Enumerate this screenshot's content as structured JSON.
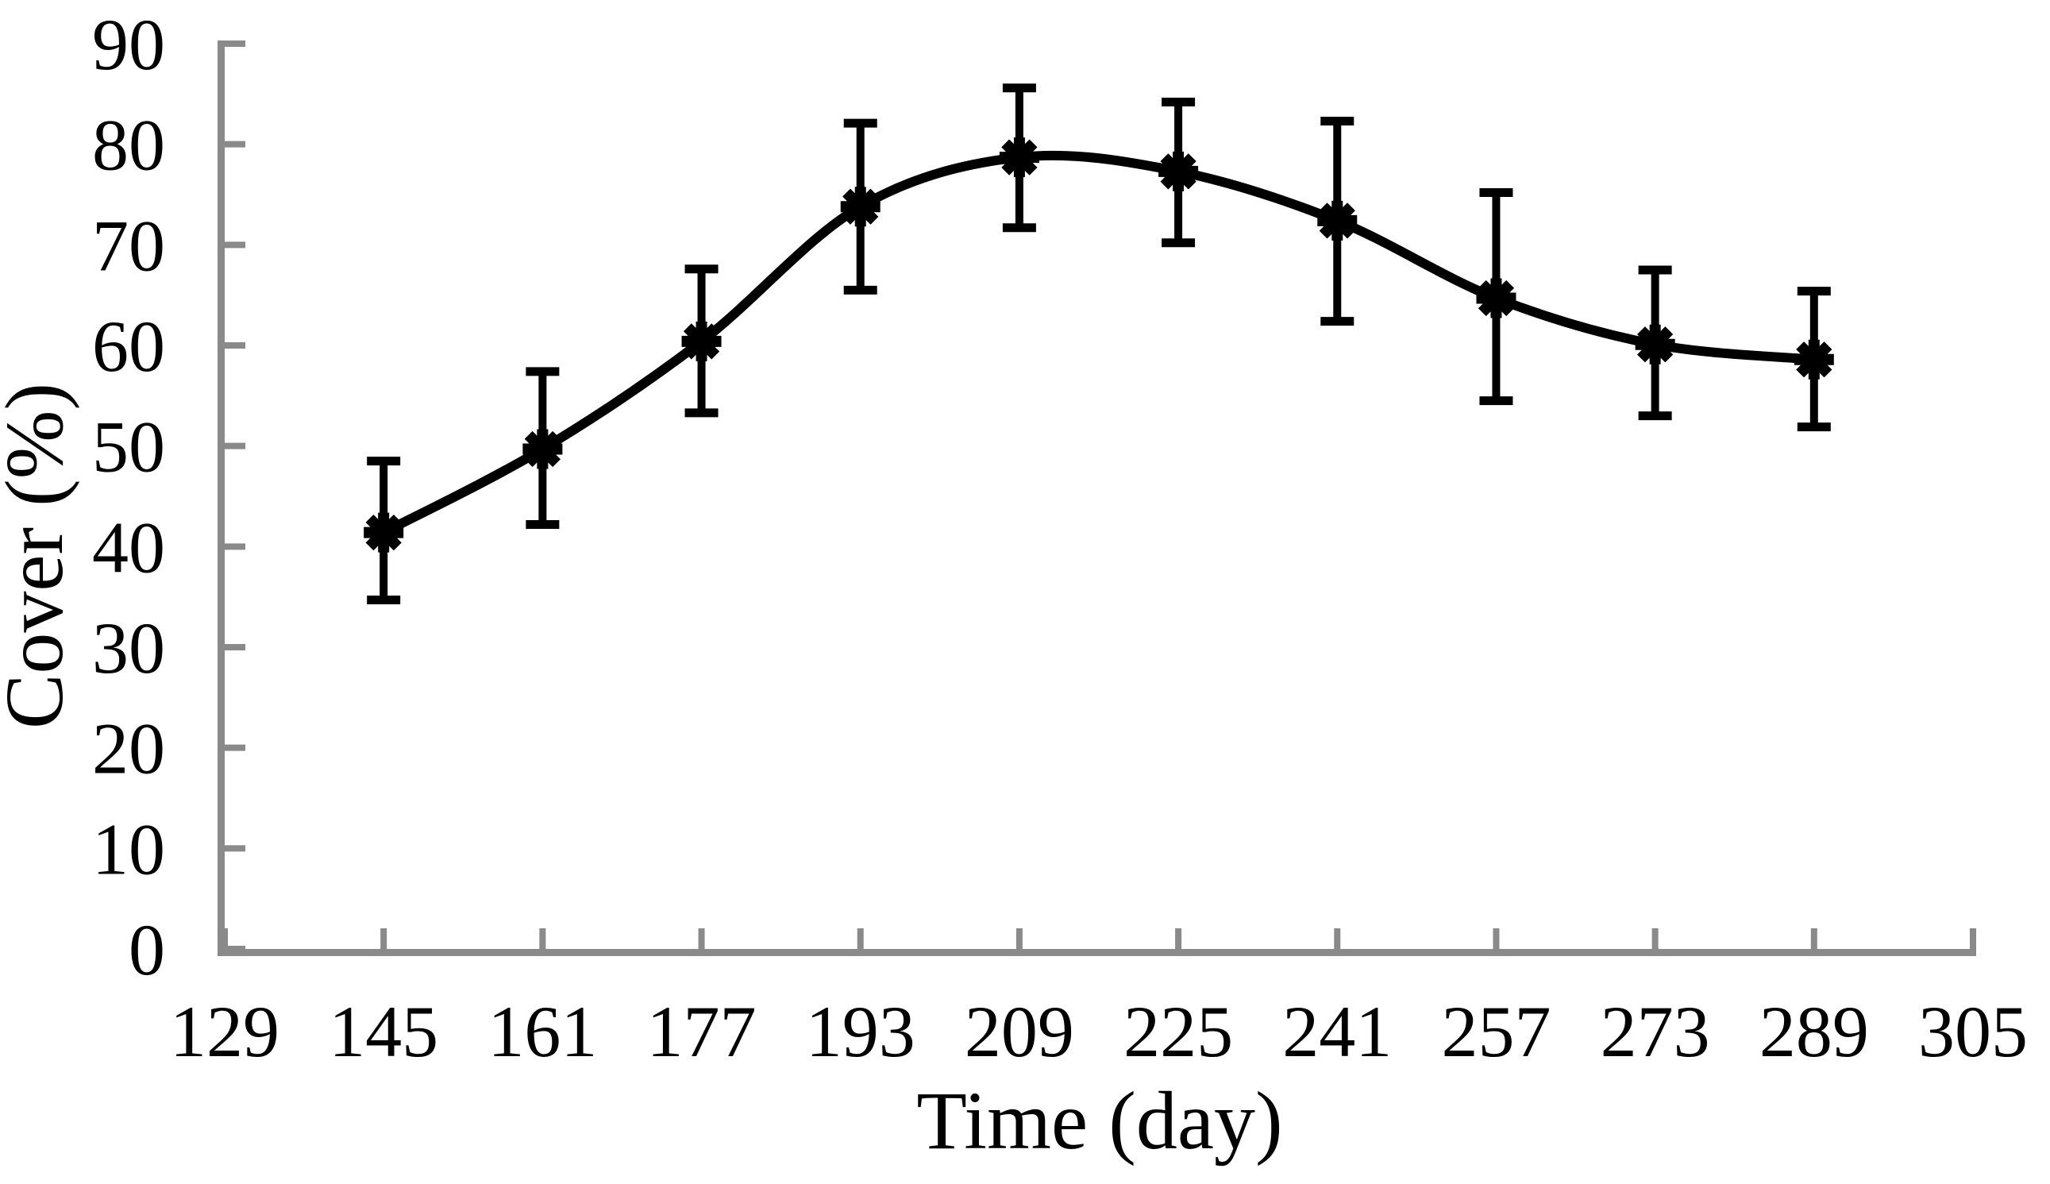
{
  "chart_data": {
    "type": "line",
    "title": "",
    "xlabel": "Time (day)",
    "ylabel": "Cover (%)",
    "xlim": [
      129,
      305
    ],
    "ylim": [
      0,
      90
    ],
    "x_ticks": [
      129,
      145,
      161,
      177,
      193,
      209,
      225,
      241,
      257,
      273,
      289,
      305
    ],
    "y_ticks": [
      0,
      10,
      20,
      30,
      40,
      50,
      60,
      70,
      80,
      90
    ],
    "grid": false,
    "legend": false,
    "axis_color": "#8a8a8a",
    "series": [
      {
        "name": "Cover",
        "color": "#000000",
        "marker": "eight-point-star",
        "smooth": true,
        "error_bars": true,
        "points": [
          {
            "x": 145,
            "y": 41.4,
            "lo": 34.7,
            "hi": 48.5
          },
          {
            "x": 161,
            "y": 49.7,
            "lo": 42.2,
            "hi": 57.4
          },
          {
            "x": 177,
            "y": 60.4,
            "lo": 53.3,
            "hi": 67.6
          },
          {
            "x": 193,
            "y": 73.8,
            "lo": 65.5,
            "hi": 82.1
          },
          {
            "x": 209,
            "y": 78.7,
            "lo": 71.7,
            "hi": 85.6
          },
          {
            "x": 225,
            "y": 77.3,
            "lo": 70.2,
            "hi": 84.2
          },
          {
            "x": 241,
            "y": 72.4,
            "lo": 62.4,
            "hi": 82.3
          },
          {
            "x": 257,
            "y": 64.7,
            "lo": 54.5,
            "hi": 75.2
          },
          {
            "x": 273,
            "y": 60.1,
            "lo": 53.0,
            "hi": 67.5
          },
          {
            "x": 289,
            "y": 58.6,
            "lo": 51.9,
            "hi": 65.4
          }
        ]
      }
    ]
  }
}
